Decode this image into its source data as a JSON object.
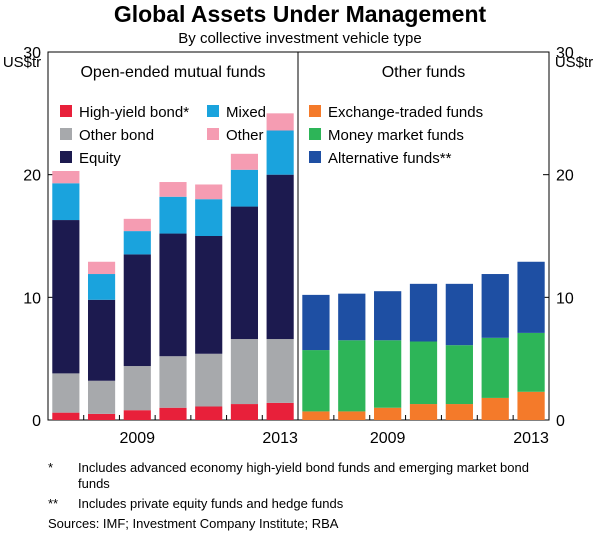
{
  "chart_data": {
    "type": "bar",
    "stacked": true,
    "title": "Global Assets Under Management",
    "subtitle": "By collective investment vehicle type",
    "ylabel": "US$tr",
    "ylim": [
      0,
      30
    ],
    "yticks": [
      0,
      10,
      20,
      30
    ],
    "x": [
      2007,
      2008,
      2009,
      2010,
      2011,
      2012,
      2013
    ],
    "xtick_labels": [
      "2009",
      "2013"
    ],
    "panels": [
      {
        "title": "Open-ended mutual funds",
        "series": [
          {
            "name": "High-yield bond*",
            "color": "#e8203a",
            "values": [
              0.6,
              0.5,
              0.8,
              1.0,
              1.1,
              1.3,
              1.4
            ]
          },
          {
            "name": "Other bond",
            "color": "#a7a9ac",
            "values": [
              3.2,
              2.7,
              3.6,
              4.2,
              4.3,
              5.3,
              5.2
            ]
          },
          {
            "name": "Equity",
            "color": "#1c1a4f",
            "values": [
              12.5,
              6.6,
              9.1,
              10.0,
              9.6,
              10.8,
              13.4
            ]
          },
          {
            "name": "Mixed",
            "color": "#1aa3dd",
            "values": [
              3.0,
              2.1,
              1.9,
              3.0,
              3.0,
              3.0,
              3.6
            ]
          },
          {
            "name": "Other",
            "color": "#f59cb2",
            "values": [
              1.0,
              1.0,
              1.0,
              1.2,
              1.2,
              1.3,
              1.4
            ]
          }
        ]
      },
      {
        "title": "Other funds",
        "series": [
          {
            "name": "Exchange-traded funds",
            "color": "#f47a2a",
            "values": [
              0.7,
              0.7,
              1.0,
              1.3,
              1.3,
              1.8,
              2.3
            ]
          },
          {
            "name": "Money market funds",
            "color": "#2db558",
            "values": [
              5.0,
              5.8,
              5.5,
              5.1,
              4.8,
              4.9,
              4.8
            ]
          },
          {
            "name": "Alternative funds**",
            "color": "#1e4fa3",
            "values": [
              4.5,
              3.8,
              4.0,
              4.7,
              5.0,
              5.2,
              5.8
            ]
          }
        ]
      }
    ]
  },
  "footnotes": [
    {
      "mark": "*",
      "text": "Includes advanced economy high-yield bond funds and emerging market bond funds"
    },
    {
      "mark": "**",
      "text": "Includes private equity funds and hedge funds"
    }
  ],
  "sources": "Sources:   IMF; Investment Company Institute; RBA"
}
